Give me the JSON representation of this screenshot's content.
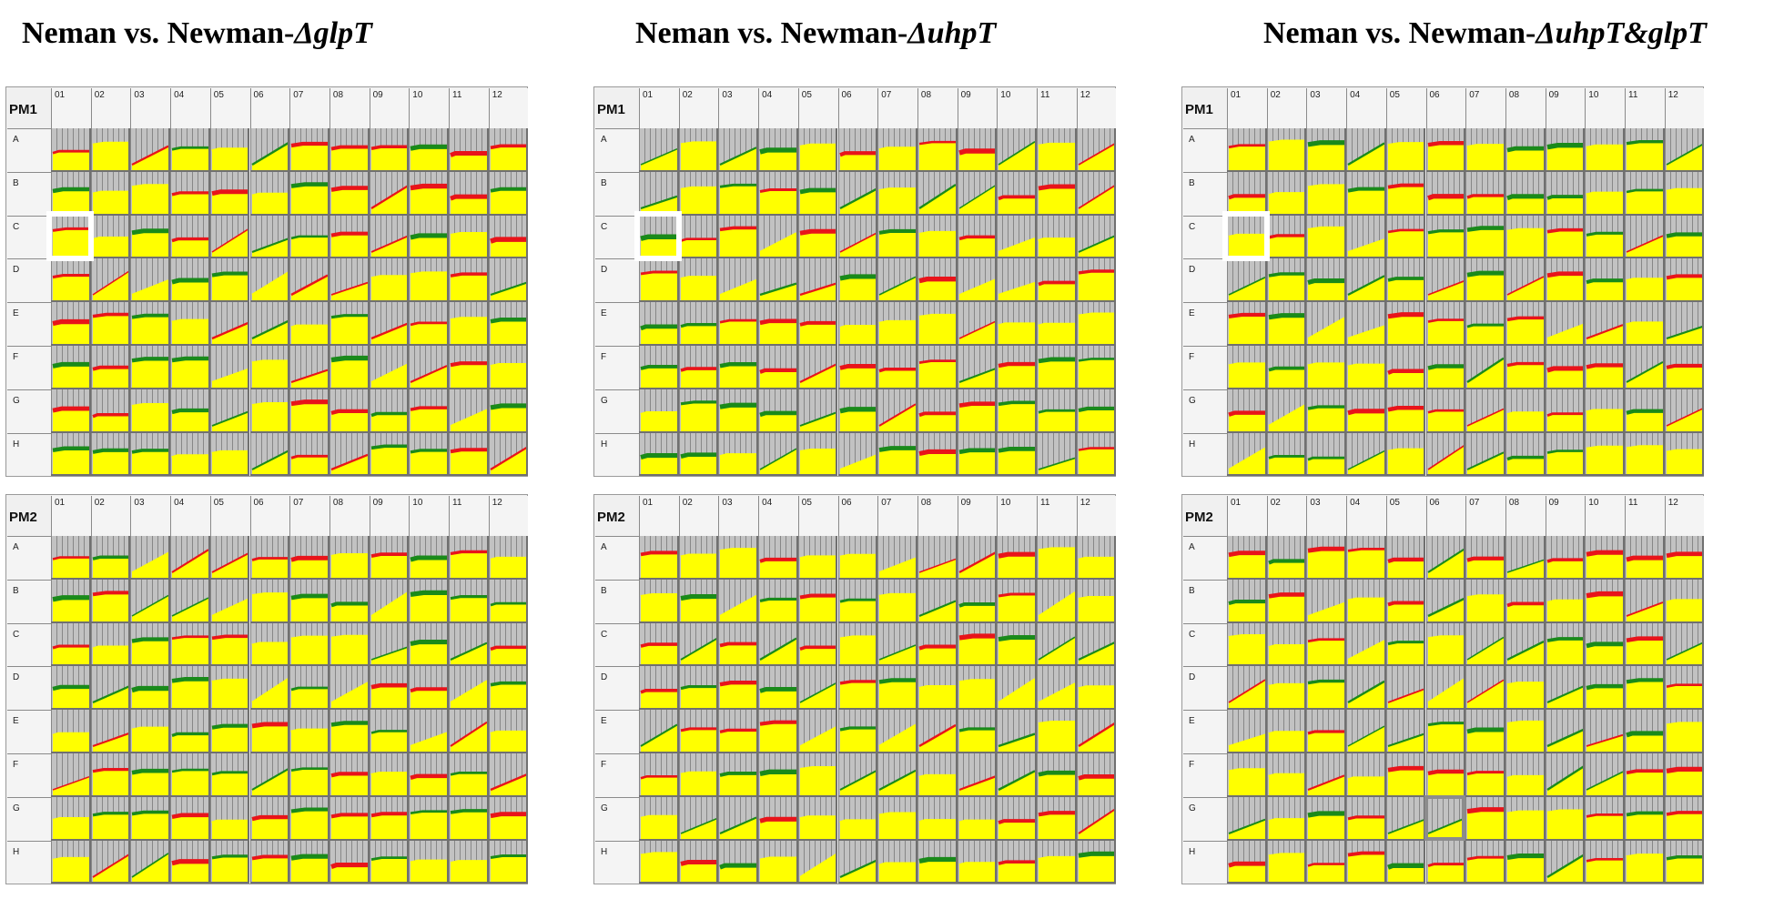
{
  "titles": [
    {
      "plain": "Neman vs. Newman-",
      "italic": "ΔglpT"
    },
    {
      "plain": "Neman vs. Newman-",
      "italic": "ΔuhpT"
    },
    {
      "plain": "Neman vs. Newman-",
      "italic": "ΔuhpT&glpT"
    }
  ],
  "plate_labels": {
    "top": "PM1",
    "bottom": "PM2"
  },
  "column_labels": [
    "01",
    "02",
    "03",
    "04",
    "05",
    "06",
    "07",
    "08",
    "09",
    "10",
    "11",
    "12"
  ],
  "row_labels": [
    "A",
    "B",
    "C",
    "D",
    "E",
    "F",
    "G",
    "H"
  ],
  "colors": {
    "red": "#e8141a",
    "green": "#1a8a1a",
    "yellow": "#ffff00",
    "well_background": "#c2c2c2"
  },
  "highlights": [
    {
      "panel": 0,
      "well": "C01",
      "style": "white-box"
    },
    {
      "panel": 1,
      "well": "C01",
      "style": "white-box"
    },
    {
      "panel": 2,
      "well": "C01",
      "style": "white-box"
    },
    {
      "panel": 5,
      "well": "G06",
      "style": "gray-box"
    }
  ]
}
